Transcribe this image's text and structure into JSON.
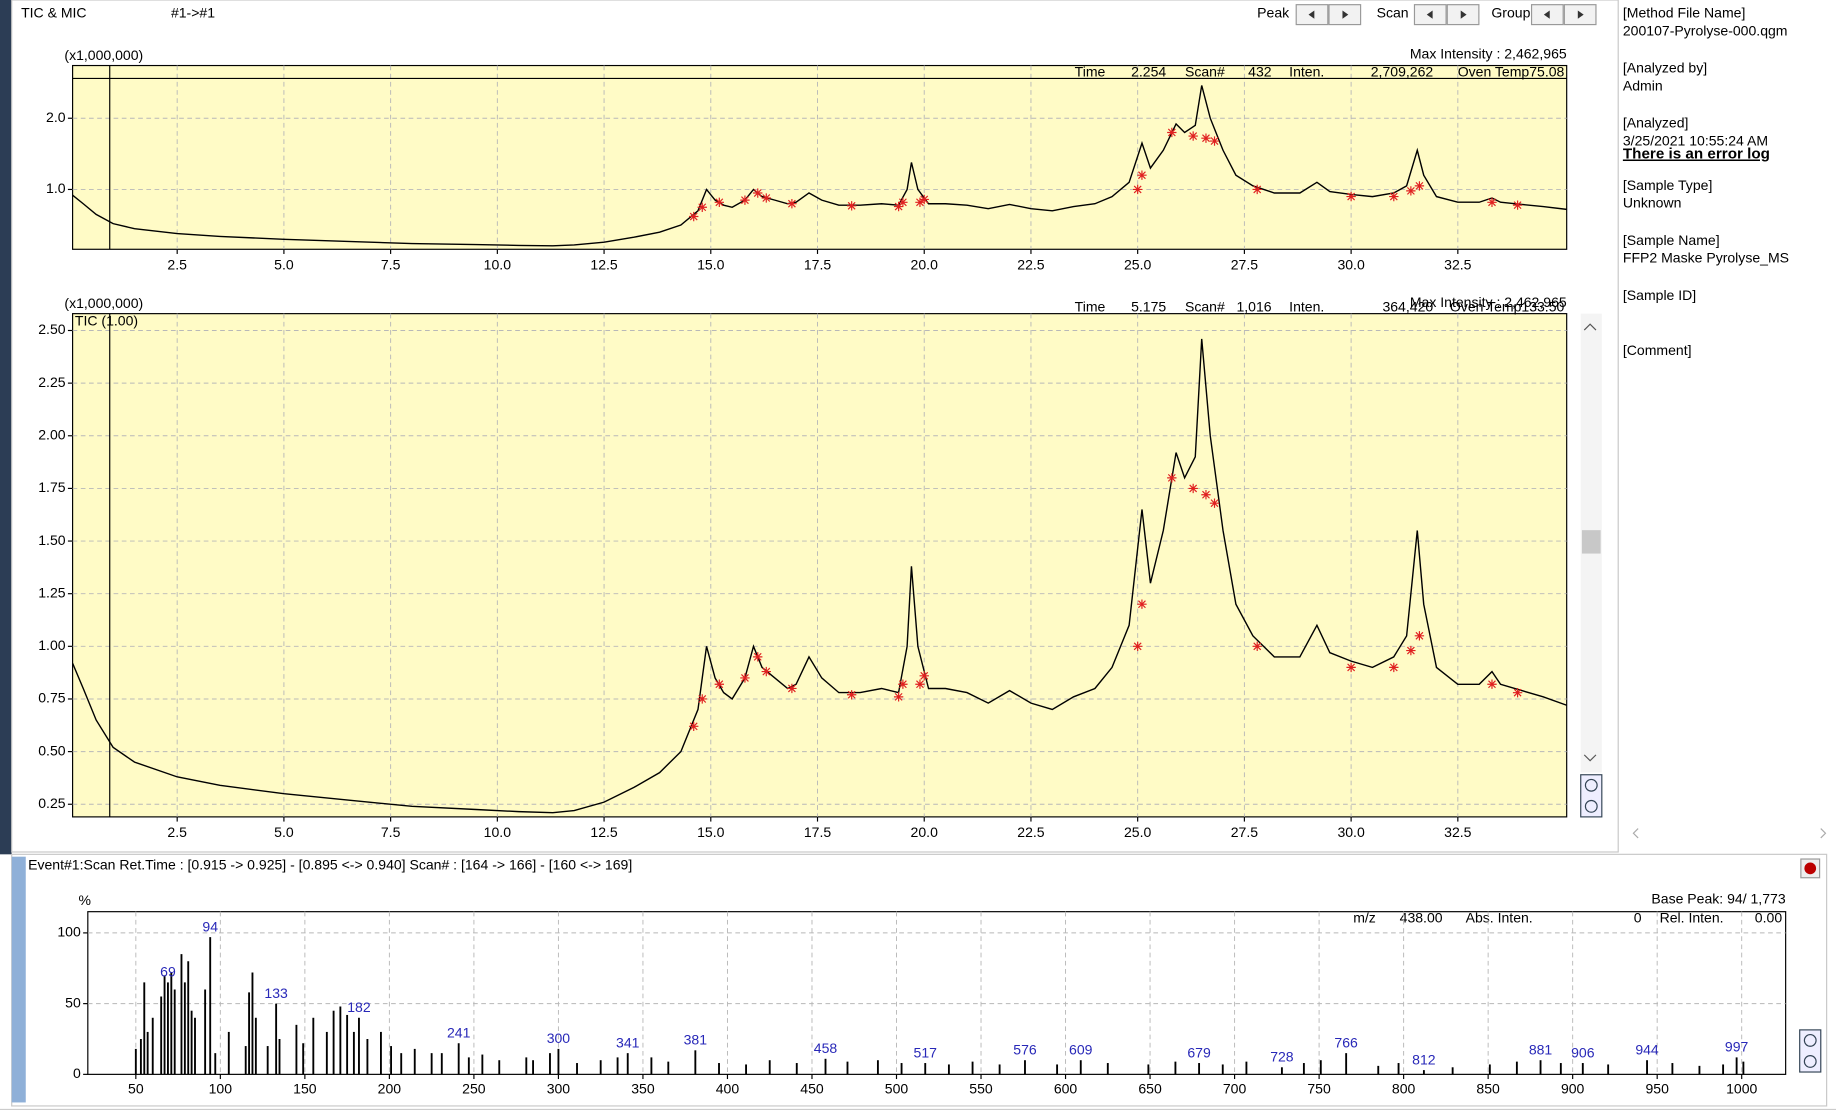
{
  "toolbar": {
    "title": "TIC & MIC",
    "channel": "#1->#1",
    "peak": "Peak",
    "scan": "Scan",
    "group": "Group"
  },
  "info_panel": [
    "[Method File Name]",
    "200107-Pyrolyse-000.qgm",
    "[Analyzed by]",
    "Admin",
    "[Analyzed]",
    "3/25/2021 10:55:24 AM",
    "There is an error log",
    "[Sample Type]",
    "Unknown",
    "[Sample Name]",
    "FFP2 Maske Pyrolyse_MS",
    "[Sample ID]",
    "[Comment]"
  ],
  "chromatogram": {
    "cursor_time": 0.92,
    "time": [
      0.05,
      0.3,
      0.6,
      1.0,
      1.5,
      2.5,
      3.5,
      5,
      6.5,
      8,
      9.5,
      10.5,
      11.3,
      11.8,
      12.5,
      13.2,
      13.8,
      14.3,
      14.7,
      14.9,
      15.1,
      15.3,
      15.5,
      15.8,
      16.0,
      16.2,
      16.5,
      16.8,
      17.0,
      17.3,
      17.6,
      18.0,
      18.5,
      19.0,
      19.4,
      19.6,
      19.7,
      19.85,
      20.1,
      20.5,
      21,
      21.5,
      22,
      22.5,
      23,
      23.5,
      24,
      24.4,
      24.8,
      25.1,
      25.3,
      25.6,
      25.9,
      26.1,
      26.35,
      26.5,
      26.7,
      27.0,
      27.3,
      27.7,
      28.2,
      28.8,
      29.2,
      29.5,
      30.0,
      30.5,
      31.0,
      31.3,
      31.55,
      31.7,
      32,
      32.5,
      33,
      33.3,
      33.5,
      34,
      34.5,
      35.05
    ],
    "intensity": [
      0.92,
      0.8,
      0.65,
      0.52,
      0.45,
      0.38,
      0.34,
      0.3,
      0.27,
      0.24,
      0.225,
      0.215,
      0.21,
      0.22,
      0.26,
      0.33,
      0.4,
      0.5,
      0.7,
      1.0,
      0.85,
      0.78,
      0.75,
      0.85,
      1.0,
      0.9,
      0.85,
      0.8,
      0.82,
      0.95,
      0.85,
      0.78,
      0.78,
      0.8,
      0.78,
      1.0,
      1.38,
      1.0,
      0.8,
      0.8,
      0.78,
      0.73,
      0.79,
      0.73,
      0.7,
      0.76,
      0.8,
      0.9,
      1.1,
      1.65,
      1.3,
      1.55,
      1.92,
      1.8,
      1.9,
      2.46,
      2.0,
      1.55,
      1.2,
      1.05,
      0.95,
      0.95,
      1.1,
      0.97,
      0.93,
      0.9,
      0.95,
      1.05,
      1.55,
      1.2,
      0.9,
      0.82,
      0.82,
      0.88,
      0.82,
      0.79,
      0.76,
      0.72
    ],
    "peaks": [
      [
        14.6,
        0.62
      ],
      [
        14.8,
        0.75
      ],
      [
        15.2,
        0.82
      ],
      [
        15.8,
        0.85
      ],
      [
        16.1,
        0.95
      ],
      [
        16.3,
        0.88
      ],
      [
        16.9,
        0.8
      ],
      [
        18.3,
        0.77
      ],
      [
        19.4,
        0.76
      ],
      [
        19.5,
        0.82
      ],
      [
        19.9,
        0.82
      ],
      [
        20.0,
        0.86
      ],
      [
        25.0,
        1.0
      ],
      [
        25.1,
        1.2
      ],
      [
        25.8,
        1.8
      ],
      [
        26.3,
        1.75
      ],
      [
        26.6,
        1.72
      ],
      [
        26.8,
        1.68
      ],
      [
        27.8,
        1.0
      ],
      [
        30.0,
        0.9
      ],
      [
        31.0,
        0.9
      ],
      [
        31.4,
        0.98
      ],
      [
        31.6,
        1.05
      ],
      [
        33.3,
        0.82
      ],
      [
        33.9,
        0.78
      ]
    ]
  },
  "panels": [
    {
      "unit_label": "(x1,000,000)",
      "max_intensity": "Max Intensity : 2,462,965",
      "readout": [
        "Time",
        "2.254",
        "Scan#",
        "432",
        "Inten.",
        "2,709,262",
        "Oven Temp75.08"
      ],
      "xlim": [
        0.05,
        35.05
      ],
      "ylim": [
        0.16,
        2.74
      ],
      "xticks": [
        2.5,
        {
          "value": 5,
          "label": "5.0"
        },
        7.5,
        {
          "value": 10,
          "label": "10.0"
        },
        12.5,
        {
          "value": 15,
          "label": "15.0"
        },
        17.5,
        {
          "value": 20,
          "label": "20.0"
        },
        22.5,
        {
          "value": 25,
          "label": "25.0"
        },
        27.5,
        {
          "value": 30,
          "label": "30.0"
        },
        32.5
      ],
      "yticks": [
        {
          "value": 1,
          "label": "1.0"
        },
        {
          "value": 2,
          "label": "2.0"
        }
      ]
    },
    {
      "unit_label": "(x1,000,000)",
      "max_intensity": "Max Intensity : 2,462,965",
      "trace_label": "TIC (1.00)",
      "readout": [
        "Time",
        "5.175",
        "Scan#",
        "1,016",
        "Inten.",
        "364,420",
        "Oven Temp133.50"
      ],
      "xlim": [
        0.05,
        35.05
      ],
      "ylim": [
        0.19,
        2.58
      ],
      "xticks": [
        2.5,
        {
          "value": 5,
          "label": "5.0"
        },
        7.5,
        {
          "value": 10,
          "label": "10.0"
        },
        12.5,
        {
          "value": 15,
          "label": "15.0"
        },
        17.5,
        {
          "value": 20,
          "label": "20.0"
        },
        22.5,
        {
          "value": 25,
          "label": "25.0"
        },
        27.5,
        {
          "value": 30,
          "label": "30.0"
        },
        32.5
      ],
      "yticks": [
        0.25,
        {
          "value": 0.5,
          "label": "0.50"
        },
        0.75,
        {
          "value": 1,
          "label": "1.00"
        },
        1.25,
        {
          "value": 1.5,
          "label": "1.50"
        },
        1.75,
        {
          "value": 2,
          "label": "2.00"
        },
        2.25,
        {
          "value": 2.5,
          "label": "2.50"
        }
      ]
    }
  ],
  "spectrum": {
    "header": "Event#1:Scan   Ret.Time : [0.915 -> 0.925] - [0.895 <-> 0.940]   Scan# : [164 -> 166] - [160 <-> 169]",
    "y_unit": "%",
    "base_peak": "Base Peak: 94/ 1,773",
    "readout": [
      "m/z",
      "438.00",
      "Abs. Inten.",
      "0",
      "Rel. Inten.",
      "0.00"
    ],
    "xlim": [
      21.6,
      1026
    ],
    "ylim": [
      0,
      115
    ],
    "xticks": [
      50,
      100,
      150,
      200,
      250,
      300,
      350,
      400,
      450,
      500,
      550,
      600,
      650,
      700,
      750,
      800,
      850,
      900,
      950,
      1000
    ],
    "yticks": [
      0,
      50,
      100
    ],
    "labeled_peaks": [
      [
        69,
        65
      ],
      [
        94,
        97
      ],
      [
        133,
        50
      ],
      [
        182,
        40
      ],
      [
        241,
        22
      ],
      [
        300,
        18
      ],
      [
        341,
        15
      ],
      [
        381,
        17
      ],
      [
        458,
        11
      ],
      [
        517,
        8
      ],
      [
        576,
        10
      ],
      [
        609,
        10
      ],
      [
        679,
        8
      ],
      [
        728,
        5
      ],
      [
        766,
        15
      ],
      [
        812,
        3
      ],
      [
        881,
        10
      ],
      [
        906,
        8
      ],
      [
        944,
        10
      ],
      [
        997,
        12
      ]
    ],
    "peaks": [
      [
        50,
        18
      ],
      [
        53,
        25
      ],
      [
        55,
        65
      ],
      [
        57,
        30
      ],
      [
        60,
        40
      ],
      [
        65,
        55
      ],
      [
        67,
        70
      ],
      [
        71,
        72
      ],
      [
        73,
        60
      ],
      [
        77,
        85
      ],
      [
        79,
        65
      ],
      [
        81,
        80
      ],
      [
        83,
        45
      ],
      [
        85,
        40
      ],
      [
        91,
        60
      ],
      [
        97,
        15
      ],
      [
        105,
        30
      ],
      [
        115,
        20
      ],
      [
        117,
        58
      ],
      [
        119,
        72
      ],
      [
        121,
        40
      ],
      [
        128,
        20
      ],
      [
        135,
        25
      ],
      [
        145,
        35
      ],
      [
        149,
        22
      ],
      [
        155,
        40
      ],
      [
        163,
        30
      ],
      [
        167,
        45
      ],
      [
        171,
        48
      ],
      [
        175,
        42
      ],
      [
        179,
        30
      ],
      [
        187,
        25
      ],
      [
        195,
        30
      ],
      [
        201,
        20
      ],
      [
        207,
        15
      ],
      [
        215,
        18
      ],
      [
        225,
        15
      ],
      [
        231,
        15
      ],
      [
        247,
        12
      ],
      [
        255,
        14
      ],
      [
        265,
        10
      ],
      [
        281,
        12
      ],
      [
        285,
        10
      ],
      [
        295,
        15
      ],
      [
        311,
        8
      ],
      [
        325,
        10
      ],
      [
        335,
        12
      ],
      [
        355,
        12
      ],
      [
        365,
        9
      ],
      [
        395,
        8
      ],
      [
        411,
        7
      ],
      [
        425,
        10
      ],
      [
        441,
        8
      ],
      [
        471,
        9
      ],
      [
        489,
        10
      ],
      [
        503,
        8
      ],
      [
        531,
        7
      ],
      [
        545,
        9
      ],
      [
        561,
        7
      ],
      [
        595,
        7
      ],
      [
        625,
        8
      ],
      [
        649,
        7
      ],
      [
        665,
        9
      ],
      [
        693,
        7
      ],
      [
        707,
        9
      ],
      [
        741,
        8
      ],
      [
        751,
        10
      ],
      [
        785,
        6
      ],
      [
        797,
        8
      ],
      [
        829,
        5
      ],
      [
        851,
        7
      ],
      [
        867,
        9
      ],
      [
        893,
        8
      ],
      [
        921,
        7
      ],
      [
        959,
        8
      ],
      [
        975,
        6
      ],
      [
        989,
        7
      ],
      [
        1001,
        9
      ]
    ]
  }
}
